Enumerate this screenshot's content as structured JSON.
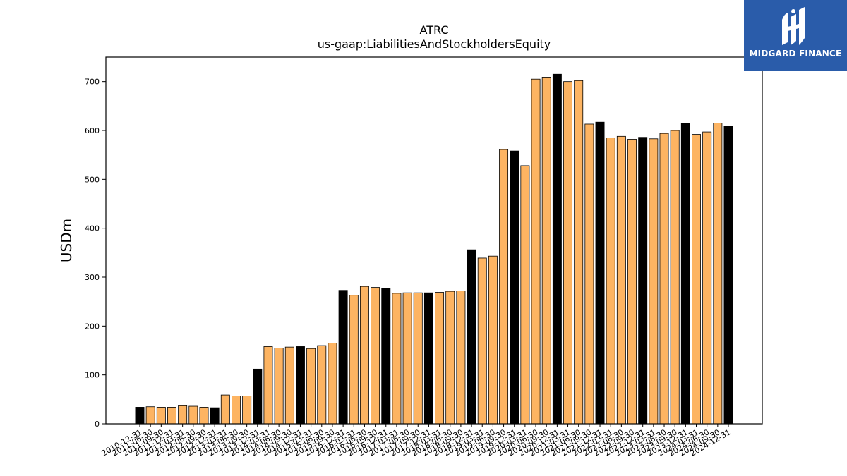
{
  "chart_data": {
    "type": "bar",
    "title": "ATRC",
    "subtitle": "us-gaap:LiabilitiesAndStockholdersEquity",
    "ylabel": "USDm",
    "xlabel": "",
    "ylim": [
      0,
      750
    ],
    "yticks": [
      0,
      100,
      200,
      300,
      400,
      500,
      600,
      700
    ],
    "grid": false,
    "colors": {
      "annual": "#000000",
      "quarterly": "#fdb462",
      "edge": "#000000"
    },
    "categories": [
      "2010-12-31",
      "2011-06-30",
      "2011-09-30",
      "2011-12-31",
      "2012-03-31",
      "2012-06-30",
      "2012-09-30",
      "2012-12-31",
      "2013-03-31",
      "2013-06-30",
      "2013-09-30",
      "2013-12-31",
      "2014-03-31",
      "2014-06-30",
      "2014-09-30",
      "2014-12-31",
      "2015-03-31",
      "2015-06-30",
      "2015-09-30",
      "2015-12-31",
      "2016-03-31",
      "2016-06-30",
      "2016-09-30",
      "2016-12-31",
      "2017-03-31",
      "2017-06-30",
      "2017-09-30",
      "2017-12-31",
      "2018-03-31",
      "2018-06-30",
      "2018-09-30",
      "2018-12-31",
      "2019-03-31",
      "2019-06-30",
      "2019-09-30",
      "2019-12-31",
      "2020-03-31",
      "2020-06-30",
      "2020-09-30",
      "2020-12-31",
      "2021-03-31",
      "2021-06-30",
      "2021-09-30",
      "2021-12-31",
      "2022-03-31",
      "2022-06-30",
      "2022-09-30",
      "2022-12-31",
      "2023-03-31",
      "2023-06-30",
      "2023-09-30",
      "2023-12-31",
      "2024-03-31",
      "2024-06-30",
      "2024-09-30",
      "2024-12-31"
    ],
    "values": [
      34,
      35,
      34,
      34,
      37,
      36,
      34,
      33,
      59,
      57,
      57,
      112,
      158,
      155,
      157,
      158,
      154,
      160,
      165,
      273,
      263,
      281,
      279,
      277,
      267,
      268,
      268,
      268,
      269,
      271,
      272,
      356,
      339,
      343,
      561,
      558,
      528,
      705,
      709,
      715,
      700,
      702,
      613,
      617,
      585,
      588,
      582,
      586,
      583,
      594,
      600,
      615,
      592,
      597,
      615,
      609
    ],
    "annual": [
      true,
      false,
      false,
      false,
      false,
      false,
      false,
      true,
      false,
      false,
      false,
      true,
      false,
      false,
      false,
      true,
      false,
      false,
      false,
      true,
      false,
      false,
      false,
      true,
      false,
      false,
      false,
      true,
      false,
      false,
      false,
      true,
      false,
      false,
      false,
      true,
      false,
      false,
      false,
      true,
      false,
      false,
      false,
      true,
      false,
      false,
      false,
      true,
      false,
      false,
      false,
      true,
      false,
      false,
      false,
      true
    ]
  },
  "logo": {
    "text": "MIDGARD FINANCE",
    "icon": "midgard-logo-icon"
  }
}
